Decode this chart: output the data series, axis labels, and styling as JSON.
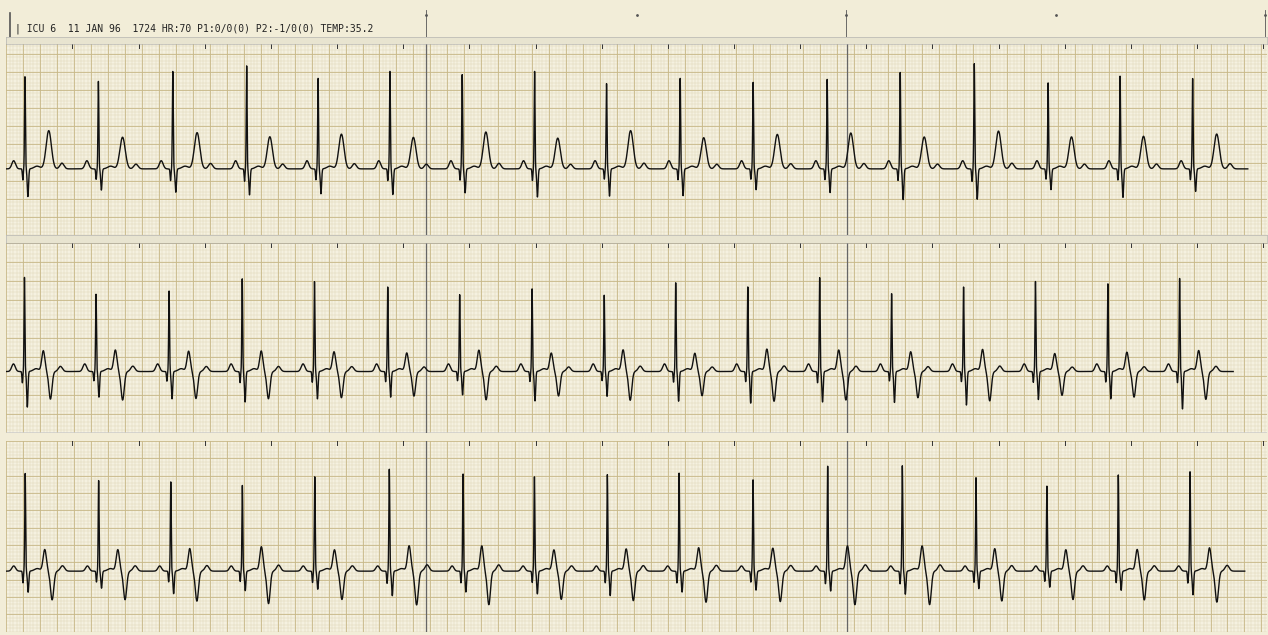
{
  "header_text": "| ICU 6  11 JAN 96  1724 HR:70 P1:0/0(0) P2:-1/0(0) TEMP:35.2",
  "background_color": "#f2edd8",
  "strip_bg_color": "#f5f1e0",
  "gap_color": "#e8e4d0",
  "grid_minor_color": "#d8ceaa",
  "grid_major_color": "#c8b888",
  "grid_minor_lw": 0.25,
  "grid_major_lw": 0.6,
  "ecg_color": "#111111",
  "ecg_lw": 1.0,
  "header_color": "#222222",
  "fig_width": 12.68,
  "fig_height": 6.35,
  "dpi": 100,
  "n_strips": 3,
  "beats_per_strip": 17,
  "hr_bpm": 70
}
